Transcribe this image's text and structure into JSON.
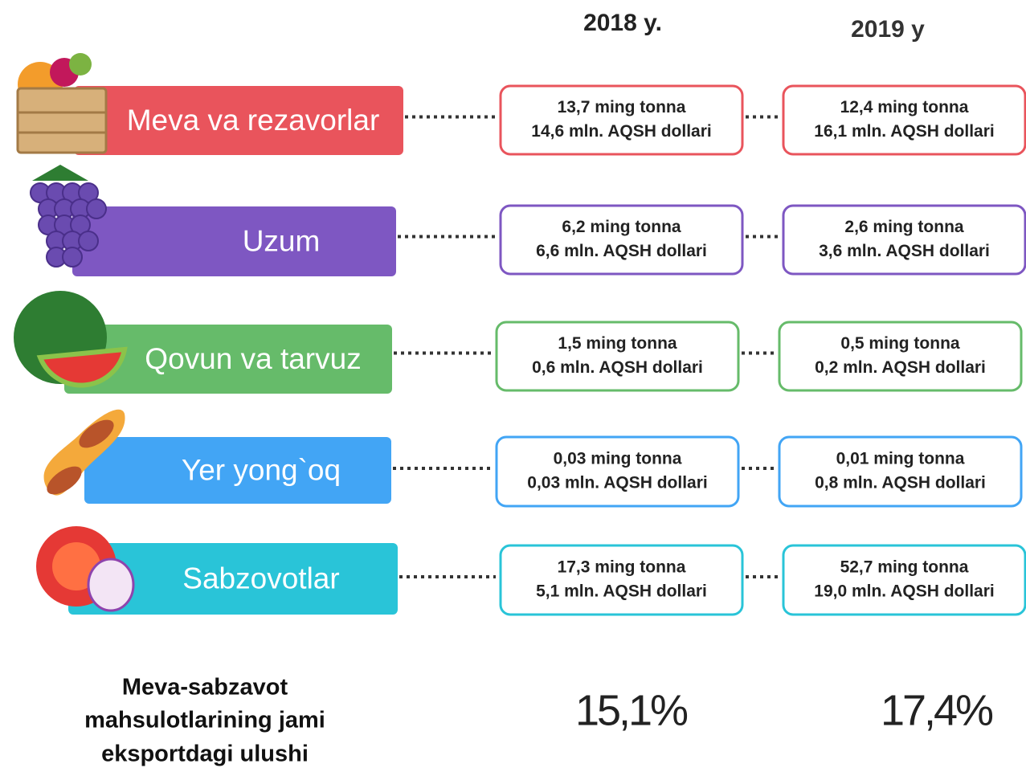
{
  "header": {
    "year_2018": "2018 y.",
    "year_2019": "2019 y"
  },
  "rows": [
    {
      "label": "Meva va rezavorlar",
      "color": "#e9545c",
      "y2018": [
        "13,7 ming tonna",
        "14,6 mln. AQSH dollari"
      ],
      "y2019": [
        "12,4 ming tonna",
        "16,1 mln. AQSH dollari"
      ]
    },
    {
      "label": "Uzum",
      "color": "#7e57c2",
      "y2018": [
        "6,2 ming tonna",
        "6,6 mln. AQSH dollari"
      ],
      "y2019": [
        "2,6 ming tonna",
        "3,6 mln. AQSH dollari"
      ]
    },
    {
      "label": "Qovun va tarvuz",
      "color": "#66bb6a",
      "y2018": [
        "1,5 ming tonna",
        "0,6 mln. AQSH dollari"
      ],
      "y2019": [
        "0,5 ming tonna",
        "0,2 mln. AQSH dollari"
      ]
    },
    {
      "label": "Yer yong`oq",
      "color": "#42a5f5",
      "y2018": [
        "0,03 ming tonna",
        "0,03 mln. AQSH dollari"
      ],
      "y2019": [
        "0,01 ming tonna",
        "0,8 mln. AQSH dollari"
      ]
    },
    {
      "label": "Sabzovotlar",
      "color": "#29c4d8",
      "y2018": [
        "17,3 ming tonna",
        "5,1 mln. AQSH dollari"
      ],
      "y2019": [
        "52,7 ming tonna",
        "19,0 mln. AQSH dollari"
      ]
    }
  ],
  "footer": {
    "label_lines": [
      "Meva-sabzavot",
      "mahsulotlarining jami",
      "eksportdagi ulushi"
    ],
    "share_2018": "15,1%",
    "share_2019": "17,4%"
  }
}
